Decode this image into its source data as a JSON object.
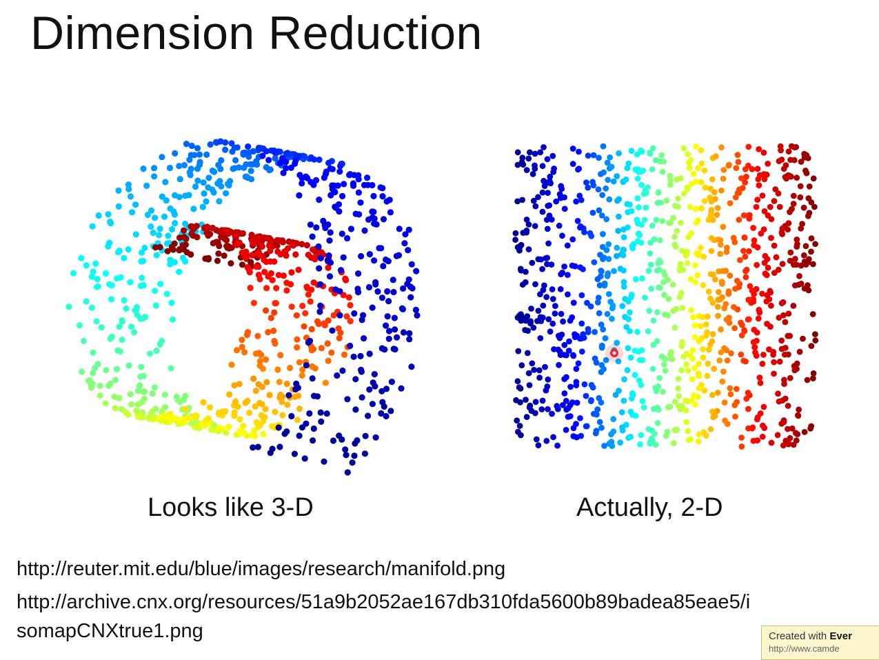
{
  "slide": {
    "title": "Dimension Reduction",
    "left_caption": "Looks like 3-D",
    "right_caption": "Actually, 2-D",
    "url_1": "http://reuter.mit.edu/blue/images/research/manifold.png",
    "url_2_line1": "http://archive.cnx.org/resources/51a9b2052ae167db310fda5600b89badea85eae5/i",
    "url_2_line2": "somapCNXtrue1.png"
  },
  "watermark": {
    "prefix": "Created with",
    "brand": "Ever",
    "line2": "http://www.camde"
  },
  "colors": {
    "colormap": [
      "#00008f",
      "#0000ff",
      "#00ffff",
      "#ffff00",
      "#ff0000",
      "#800000"
    ],
    "cursor": "#e8282e"
  }
}
